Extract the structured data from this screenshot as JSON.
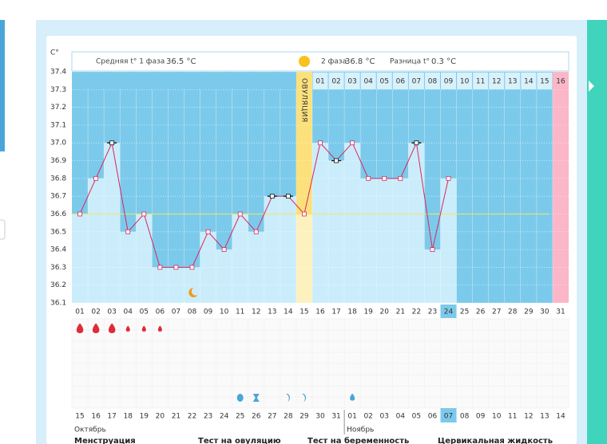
{
  "chart_data": {
    "type": "line",
    "y_unit": "C°",
    "header": {
      "phase1_label": "Средняя t° 1 фаза",
      "phase1_value": "36.5 °C",
      "phase2_label": "2 фаза",
      "phase2_value": "36.8 °C",
      "diff_label": "Разница t°",
      "diff_value": "0.3 °C"
    },
    "ovulation_label": "ОВУЛЯЦИЯ",
    "ovulation_index": 14,
    "categories": [
      "01",
      "02",
      "03",
      "04",
      "05",
      "06",
      "07",
      "08",
      "09",
      "10",
      "11",
      "12",
      "13",
      "14",
      "15",
      "16",
      "17",
      "18",
      "19",
      "20",
      "21",
      "22",
      "23",
      "24",
      "25",
      "26",
      "27",
      "28",
      "29",
      "30",
      "31"
    ],
    "phase2_days": [
      "01",
      "02",
      "03",
      "04",
      "05",
      "06",
      "07",
      "08",
      "09",
      "10",
      "11",
      "12",
      "13",
      "14",
      "15",
      "16"
    ],
    "values": [
      36.6,
      36.8,
      37.0,
      36.5,
      36.6,
      36.3,
      36.3,
      36.3,
      36.5,
      36.4,
      36.6,
      36.5,
      36.7,
      36.7,
      36.6,
      37.0,
      36.9,
      37.0,
      36.8,
      36.8,
      36.8,
      37.0,
      36.4,
      36.8,
      null,
      null,
      null,
      null,
      null,
      null,
      null
    ],
    "flagged": [
      false,
      false,
      true,
      false,
      false,
      false,
      false,
      false,
      false,
      false,
      false,
      false,
      true,
      true,
      false,
      false,
      true,
      false,
      false,
      false,
      false,
      true,
      false,
      false,
      false,
      false,
      false,
      false,
      false,
      false,
      false
    ],
    "color": "#d9265d",
    "coverline": 36.6,
    "ylim": [
      36.1,
      37.4
    ],
    "yticks": [
      36.1,
      36.2,
      36.3,
      36.4,
      36.5,
      36.6,
      36.7,
      36.8,
      36.9,
      {
        "value": 37.0,
        "label": "37.0"
      },
      37.1,
      37.2,
      37.3,
      37.4
    ],
    "today_index": 23,
    "moon_index": 7,
    "menstruation": [
      "heavy",
      "heavy",
      "heavy",
      "light",
      "light",
      "light"
    ],
    "events": [
      {
        "day_index": 10,
        "kind": "circle"
      },
      {
        "day_index": 11,
        "kind": "hourglass"
      },
      {
        "day_index": 13,
        "kind": "crescent"
      },
      {
        "day_index": 14,
        "kind": "crescent"
      },
      {
        "day_index": 17,
        "kind": "drop"
      }
    ],
    "dates": [
      {
        "label": "15",
        "weekend": false
      },
      {
        "label": "16",
        "weekend": true
      },
      {
        "label": "17",
        "weekend": true
      },
      {
        "label": "18",
        "weekend": false
      },
      {
        "label": "19",
        "weekend": false
      },
      {
        "label": "20",
        "weekend": false
      },
      {
        "label": "21",
        "weekend": false
      },
      {
        "label": "22",
        "weekend": false
      },
      {
        "label": "23",
        "weekend": true
      },
      {
        "label": "24",
        "weekend": true
      },
      {
        "label": "25",
        "weekend": false
      },
      {
        "label": "26",
        "weekend": false
      },
      {
        "label": "27",
        "weekend": false
      },
      {
        "label": "28",
        "weekend": false
      },
      {
        "label": "29",
        "weekend": false
      },
      {
        "label": "30",
        "weekend": true
      },
      {
        "label": "31",
        "weekend": true
      },
      {
        "label": "01",
        "weekend": false
      },
      {
        "label": "02",
        "weekend": false
      },
      {
        "label": "03",
        "weekend": false
      },
      {
        "label": "04",
        "weekend": false
      },
      {
        "label": "05",
        "weekend": false
      },
      {
        "label": "06",
        "weekend": true
      },
      {
        "label": "07",
        "weekend": false
      },
      {
        "label": "08",
        "weekend": false
      },
      {
        "label": "09",
        "weekend": false
      },
      {
        "label": "10",
        "weekend": false
      },
      {
        "label": "11",
        "weekend": false
      },
      {
        "label": "12",
        "weekend": false
      },
      {
        "label": "13",
        "weekend": true
      },
      {
        "label": "14",
        "weekend": true
      }
    ],
    "months": [
      "Октябрь",
      "Ноябрь"
    ],
    "legend": [
      "Менструация",
      "Тест на овуляцию",
      "Тест на беременность",
      "Цервикальная жидкость"
    ]
  }
}
